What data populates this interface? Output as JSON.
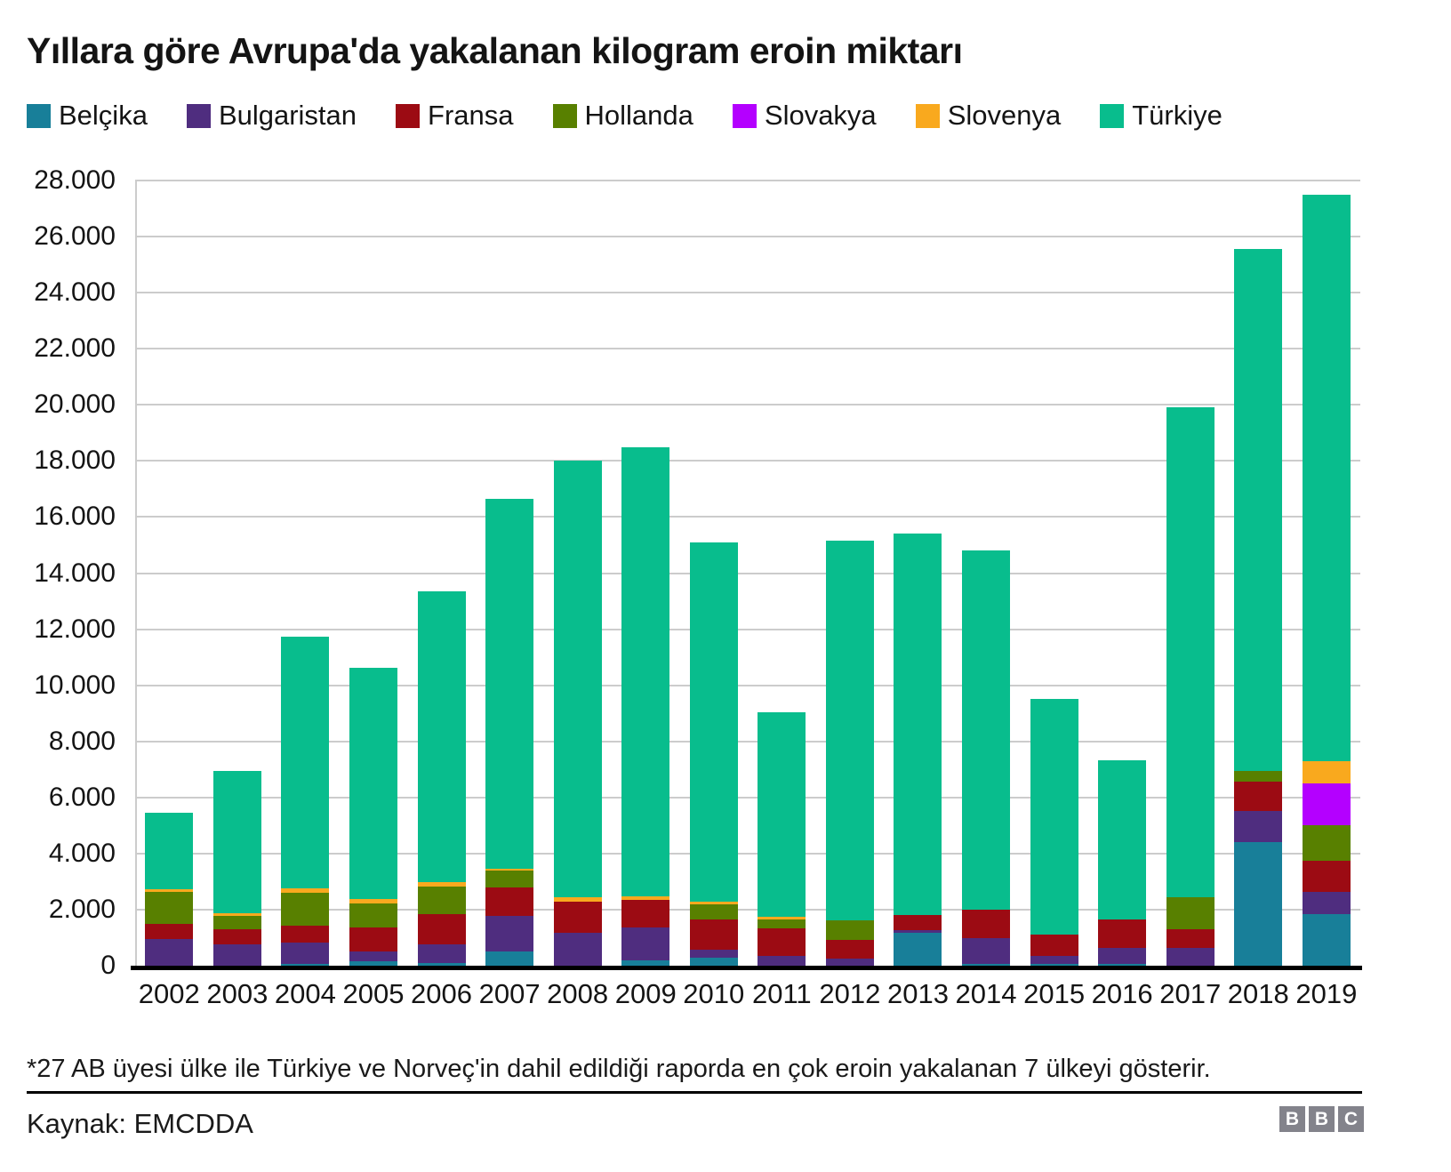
{
  "title": "Yıllara göre Avrupa'da yakalanan kilogram eroin miktarı",
  "legend": [
    {
      "label": "Belçika",
      "color": "#187f99"
    },
    {
      "label": "Bulgaristan",
      "color": "#4f2d7f"
    },
    {
      "label": "Fransa",
      "color": "#9c0b13"
    },
    {
      "label": "Hollanda",
      "color": "#588000"
    },
    {
      "label": "Slovakya",
      "color": "#b400ff"
    },
    {
      "label": "Slovenya",
      "color": "#f9a91e"
    },
    {
      "label": "Türkiye",
      "color": "#08bd8d"
    }
  ],
  "chart_data": {
    "type": "bar",
    "stacked": true,
    "title": "Yıllara göre Avrupa'da yakalanan kilogram eroin miktarı",
    "xlabel": "",
    "ylabel": "",
    "ylim": [
      0,
      28000
    ],
    "grid": true,
    "legend_position": "top",
    "yticks": [
      "28.000",
      "26.000",
      "24.000",
      "22.000",
      "20.000",
      "18.000",
      "16.000",
      "14.000",
      "12.000",
      "10.000",
      "8.000",
      "6.000",
      "4.000",
      "2.000",
      "0"
    ],
    "categories": [
      "2002",
      "2003",
      "2004",
      "2005",
      "2006",
      "2007",
      "2008",
      "2009",
      "2010",
      "2011",
      "2012",
      "2013",
      "2014",
      "2015",
      "2016",
      "2017",
      "2018",
      "2019"
    ],
    "series": [
      {
        "name": "Belçika",
        "color": "#187f99",
        "values": [
          0,
          0,
          75,
          150,
          85,
          500,
          0,
          200,
          290,
          0,
          0,
          1160,
          55,
          50,
          55,
          0,
          4415,
          1830
        ]
      },
      {
        "name": "Bulgaristan",
        "color": "#4f2d7f",
        "values": [
          950,
          760,
          740,
          370,
          680,
          1270,
          1185,
          1165,
          270,
          360,
          250,
          105,
          920,
          290,
          580,
          645,
          1100,
          815
        ]
      },
      {
        "name": "Fransa",
        "color": "#9c0b13",
        "values": [
          550,
          550,
          600,
          845,
          1080,
          1005,
          1110,
          975,
          1080,
          975,
          655,
          530,
          1030,
          760,
          1030,
          655,
          1050,
          1090
        ]
      },
      {
        "name": "Hollanda",
        "color": "#588000",
        "values": [
          1130,
          455,
          1175,
          855,
          965,
          605,
          0,
          0,
          540,
          330,
          700,
          0,
          0,
          0,
          0,
          1135,
          390,
          1270
        ]
      },
      {
        "name": "Slovakya",
        "color": "#b400ff",
        "values": [
          0,
          0,
          0,
          0,
          0,
          0,
          0,
          0,
          0,
          0,
          0,
          0,
          0,
          0,
          0,
          0,
          0,
          1480
        ]
      },
      {
        "name": "Slovenya",
        "color": "#f9a91e",
        "values": [
          85,
          125,
          160,
          160,
          180,
          85,
          160,
          140,
          95,
          75,
          0,
          0,
          0,
          0,
          0,
          0,
          0,
          795
        ]
      },
      {
        "name": "Türkiye",
        "color": "#08bd8d",
        "values": [
          2745,
          5050,
          8975,
          8255,
          10375,
          13185,
          15545,
          16020,
          12815,
          7310,
          13545,
          13605,
          12820,
          8400,
          5665,
          17465,
          18595,
          20220
        ]
      }
    ],
    "totals": [
      5460,
      6940,
      11725,
      10635,
      13365,
      16650,
      18000,
      18500,
      15090,
      9050,
      15150,
      15400,
      14825,
      9500,
      7330,
      19900,
      25550,
      27500
    ]
  },
  "footer": {
    "footnote": "*27 AB üyesi ülke ile Türkiye ve Norveç'in dahil edildiği raporda en çok eroin yakalanan 7 ülkeyi gösterir.",
    "source": "Kaynak: EMCDDA",
    "logo_blocks": [
      "B",
      "B",
      "C"
    ]
  }
}
